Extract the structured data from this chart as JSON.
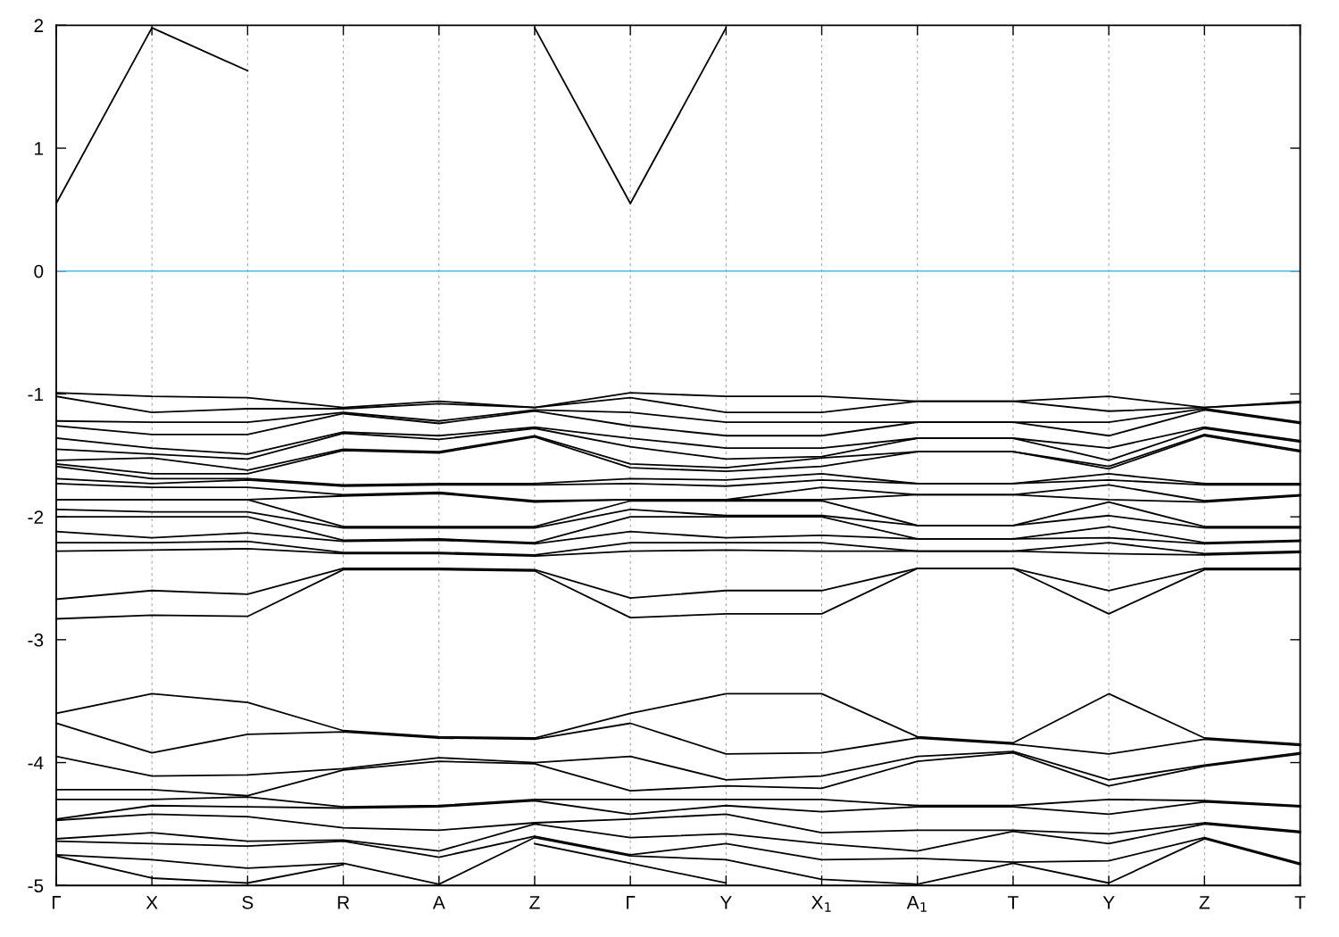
{
  "chart_data": {
    "type": "line",
    "categories": [
      "Γ",
      "X",
      "S",
      "R",
      "A",
      "Z",
      "Γ",
      "Y",
      "X$_{1}$",
      "A$_{1}$",
      "T",
      "Y",
      "Z",
      "T"
    ],
    "ylim": [
      -5,
      2
    ],
    "yticks": [
      -5,
      -4,
      -3,
      -2,
      -1,
      0,
      1,
      2
    ],
    "grid": "x",
    "ref_lines": [
      {
        "axis": "y",
        "value": 0,
        "color": "#56b4e9"
      }
    ],
    "series": [
      {
        "color": "#000000",
        "values": [
          0.55,
          1.98,
          1.63,
          null,
          null,
          1.98,
          0.55,
          1.98,
          null,
          null,
          null,
          null,
          null,
          null
        ]
      },
      {
        "color": "#000000",
        "values": [
          -0.99,
          -1.02,
          -1.03,
          -1.11,
          -1.06,
          -1.11,
          -0.99,
          -1.02,
          -1.02,
          -1.06,
          -1.06,
          -1.02,
          -1.11,
          -1.06
        ]
      },
      {
        "color": "#000000",
        "values": [
          -1.02,
          -1.15,
          -1.12,
          -1.12,
          -1.08,
          -1.11,
          -1.03,
          -1.15,
          -1.15,
          -1.06,
          -1.06,
          -1.14,
          -1.11,
          -1.07
        ]
      },
      {
        "color": "#000000",
        "values": [
          -1.22,
          -1.23,
          -1.23,
          -1.15,
          -1.22,
          -1.13,
          -1.15,
          -1.23,
          -1.23,
          -1.23,
          -1.23,
          -1.23,
          -1.12,
          -1.23
        ]
      },
      {
        "color": "#000000",
        "values": [
          -1.26,
          -1.33,
          -1.33,
          -1.16,
          -1.24,
          -1.14,
          -1.26,
          -1.34,
          -1.34,
          -1.23,
          -1.23,
          -1.34,
          -1.13,
          -1.24
        ]
      },
      {
        "color": "#000000",
        "values": [
          -1.36,
          -1.44,
          -1.49,
          -1.31,
          -1.34,
          -1.27,
          -1.36,
          -1.44,
          -1.44,
          -1.36,
          -1.36,
          -1.44,
          -1.27,
          -1.38
        ]
      },
      {
        "color": "#000000",
        "values": [
          -1.45,
          -1.49,
          -1.53,
          -1.32,
          -1.37,
          -1.28,
          -1.43,
          -1.53,
          -1.51,
          -1.36,
          -1.36,
          -1.54,
          -1.28,
          -1.39
        ]
      },
      {
        "color": "#000000",
        "values": [
          -1.54,
          -1.52,
          -1.62,
          -1.45,
          -1.47,
          -1.34,
          -1.57,
          -1.6,
          -1.52,
          -1.47,
          -1.47,
          -1.59,
          -1.33,
          -1.46
        ]
      },
      {
        "color": "#000000",
        "values": [
          -1.57,
          -1.65,
          -1.65,
          -1.46,
          -1.48,
          -1.35,
          -1.6,
          -1.63,
          -1.59,
          -1.47,
          -1.47,
          -1.61,
          -1.34,
          -1.47
        ]
      },
      {
        "color": "#000000",
        "values": [
          -1.59,
          -1.69,
          -1.69,
          -1.74,
          -1.73,
          -1.73,
          -1.69,
          -1.7,
          -1.65,
          -1.73,
          -1.73,
          -1.65,
          -1.73,
          -1.73
        ]
      },
      {
        "color": "#000000",
        "values": [
          -1.69,
          -1.73,
          -1.7,
          -1.75,
          -1.74,
          -1.74,
          -1.73,
          -1.75,
          -1.7,
          -1.73,
          -1.73,
          -1.7,
          -1.74,
          -1.74
        ]
      },
      {
        "color": "#000000",
        "values": [
          -1.73,
          -1.76,
          -1.76,
          -1.82,
          -1.8,
          -1.87,
          -1.86,
          -1.86,
          -1.76,
          -1.82,
          -1.82,
          -1.74,
          -1.87,
          -1.82
        ]
      },
      {
        "color": "#000000",
        "values": [
          -1.86,
          -1.86,
          -1.86,
          -1.83,
          -1.81,
          -1.88,
          -1.86,
          -1.86,
          -1.86,
          -1.82,
          -1.82,
          -1.86,
          -1.88,
          -1.83
        ]
      },
      {
        "color": "#000000",
        "values": [
          -1.86,
          -1.86,
          -1.86,
          -2.08,
          -2.08,
          -2.08,
          -1.87,
          -1.87,
          -1.87,
          -2.07,
          -2.07,
          -1.88,
          -2.08,
          -2.08
        ]
      },
      {
        "color": "#000000",
        "values": [
          -1.94,
          -1.96,
          -1.96,
          -2.09,
          -2.09,
          -2.09,
          -1.94,
          -1.99,
          -1.99,
          -2.07,
          -2.07,
          -1.99,
          -2.09,
          -2.09
        ]
      },
      {
        "color": "#000000",
        "values": [
          -2.0,
          -2.0,
          -2.0,
          -2.19,
          -2.18,
          -2.21,
          -2.0,
          -2.0,
          -2.0,
          -2.18,
          -2.18,
          -2.08,
          -2.21,
          -2.19
        ]
      },
      {
        "color": "#000000",
        "values": [
          -2.12,
          -2.17,
          -2.13,
          -2.2,
          -2.19,
          -2.22,
          -2.12,
          -2.17,
          -2.15,
          -2.18,
          -2.18,
          -2.17,
          -2.22,
          -2.2
        ]
      },
      {
        "color": "#000000",
        "values": [
          -2.21,
          -2.21,
          -2.2,
          -2.29,
          -2.29,
          -2.31,
          -2.21,
          -2.21,
          -2.21,
          -2.28,
          -2.28,
          -2.21,
          -2.3,
          -2.28
        ]
      },
      {
        "color": "#000000",
        "values": [
          -2.28,
          -2.27,
          -2.26,
          -2.3,
          -2.3,
          -2.32,
          -2.28,
          -2.27,
          -2.28,
          -2.28,
          -2.28,
          -2.3,
          -2.31,
          -2.29
        ]
      },
      {
        "color": "#000000",
        "values": [
          -2.67,
          -2.6,
          -2.63,
          -2.42,
          -2.42,
          -2.43,
          -2.66,
          -2.6,
          -2.6,
          -2.42,
          -2.42,
          -2.6,
          -2.42,
          -2.42
        ]
      },
      {
        "color": "#000000",
        "values": [
          -2.83,
          -2.8,
          -2.81,
          -2.43,
          -2.43,
          -2.44,
          -2.82,
          -2.79,
          -2.79,
          -2.42,
          -2.42,
          -2.79,
          -2.43,
          -2.43
        ]
      },
      {
        "color": "#000000",
        "values": [
          -3.6,
          -3.44,
          -3.51,
          -3.74,
          -3.79,
          -3.8,
          -3.6,
          -3.44,
          -3.44,
          -3.79,
          -3.84,
          -3.44,
          -3.8,
          -3.85
        ]
      },
      {
        "color": "#000000",
        "values": [
          -3.68,
          -3.92,
          -3.77,
          -3.75,
          -3.8,
          -3.81,
          -3.68,
          -3.93,
          -3.92,
          -3.8,
          -3.85,
          -3.93,
          -3.81,
          -3.86
        ]
      },
      {
        "color": "#000000",
        "values": [
          -3.95,
          -4.11,
          -4.1,
          -4.05,
          -3.96,
          -4.0,
          -3.95,
          -4.14,
          -4.11,
          -3.95,
          -3.91,
          -4.14,
          -4.02,
          -3.92
        ]
      },
      {
        "color": "#000000",
        "values": [
          -4.22,
          -4.22,
          -4.27,
          -4.06,
          -3.99,
          -4.01,
          -4.23,
          -4.19,
          -4.21,
          -3.99,
          -3.92,
          -4.19,
          -4.03,
          -3.93
        ]
      },
      {
        "color": "#000000",
        "values": [
          -4.3,
          -4.3,
          -4.28,
          -4.36,
          -4.35,
          -4.3,
          -4.3,
          -4.3,
          -4.3,
          -4.35,
          -4.35,
          -4.3,
          -4.31,
          -4.35
        ]
      },
      {
        "color": "#000000",
        "values": [
          -4.46,
          -4.35,
          -4.36,
          -4.37,
          -4.36,
          -4.31,
          -4.42,
          -4.35,
          -4.4,
          -4.36,
          -4.36,
          -4.42,
          -4.32,
          -4.36
        ]
      },
      {
        "color": "#000000",
        "values": [
          -4.47,
          -4.42,
          -4.44,
          -4.53,
          -4.55,
          -4.49,
          -4.46,
          -4.42,
          -4.57,
          -4.55,
          -4.55,
          -4.58,
          -4.49,
          -4.56
        ]
      },
      {
        "color": "#000000",
        "values": [
          -4.62,
          -4.57,
          -4.64,
          -4.63,
          -4.72,
          -4.5,
          -4.61,
          -4.58,
          -4.66,
          -4.72,
          -4.56,
          -4.66,
          -4.5,
          -4.57
        ]
      },
      {
        "color": "#000000",
        "values": [
          -4.64,
          -4.66,
          -4.68,
          -4.64,
          -4.77,
          -4.6,
          -4.75,
          -4.66,
          -4.79,
          -4.78,
          -4.81,
          -4.8,
          -4.61,
          -4.82
        ]
      },
      {
        "color": "#000000",
        "values": [
          -4.75,
          -4.79,
          -4.86,
          -4.82,
          -4.99,
          -4.61,
          -4.76,
          -4.79,
          -4.95,
          -4.99,
          -4.82,
          -4.98,
          -4.62,
          -4.83
        ]
      },
      {
        "color": "#000000",
        "values": [
          -4.76,
          -4.94,
          -4.98,
          -4.83,
          null,
          -4.66,
          -4.82,
          -4.98,
          null,
          null,
          null,
          null,
          null,
          null
        ]
      }
    ]
  }
}
